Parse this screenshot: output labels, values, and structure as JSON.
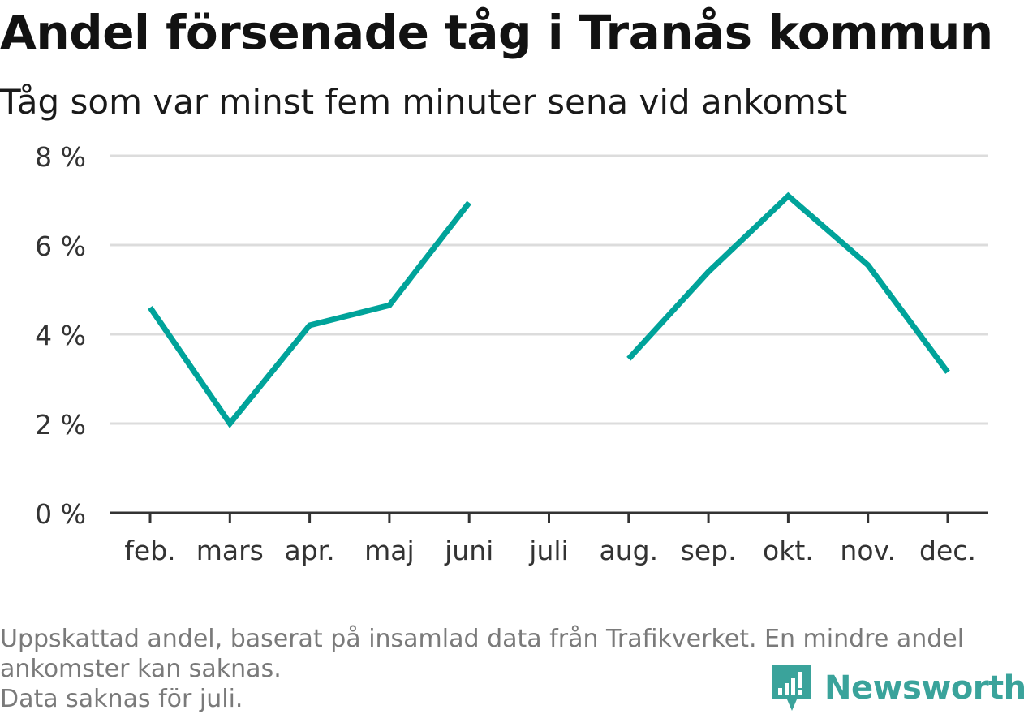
{
  "header": {
    "title": "Andel försenade tåg i Tranås kommun",
    "subtitle": "Tåg som var minst fem minuter sena vid ankomst"
  },
  "chart_data": {
    "type": "line",
    "title": "Andel försenade tåg i Tranås kommun",
    "subtitle": "Tåg som var minst fem minuter sena vid ankomst",
    "xlabel": "",
    "ylabel": "",
    "categories": [
      "feb.",
      "mars",
      "apr.",
      "maj",
      "juni",
      "juli",
      "aug.",
      "sep.",
      "okt.",
      "nov.",
      "dec."
    ],
    "series": [
      {
        "values": [
          4.6,
          2.0,
          4.2,
          4.65,
          6.95,
          null,
          3.45,
          5.4,
          7.1,
          5.55,
          3.15
        ]
      }
    ],
    "ylim": [
      0,
      8
    ],
    "yticks": [
      0,
      2,
      4,
      6,
      8
    ],
    "ytick_labels": [
      "0 %",
      "2 %",
      "4 %",
      "6 %",
      "8 %"
    ],
    "grid": true,
    "line_color": "#00a39a",
    "gridline_color": "#dcdcdc",
    "axis_color": "#333333"
  },
  "footnote": {
    "line1": "Uppskattad andel, baserat på insamlad data från Trafikverket. En mindre andel",
    "line2": "ankomster kan saknas.",
    "line3": "Data saknas för juli."
  },
  "brand": {
    "name": "Newsworthy",
    "icon": "newsworthy-logo-icon",
    "color": "#3aa39b"
  }
}
